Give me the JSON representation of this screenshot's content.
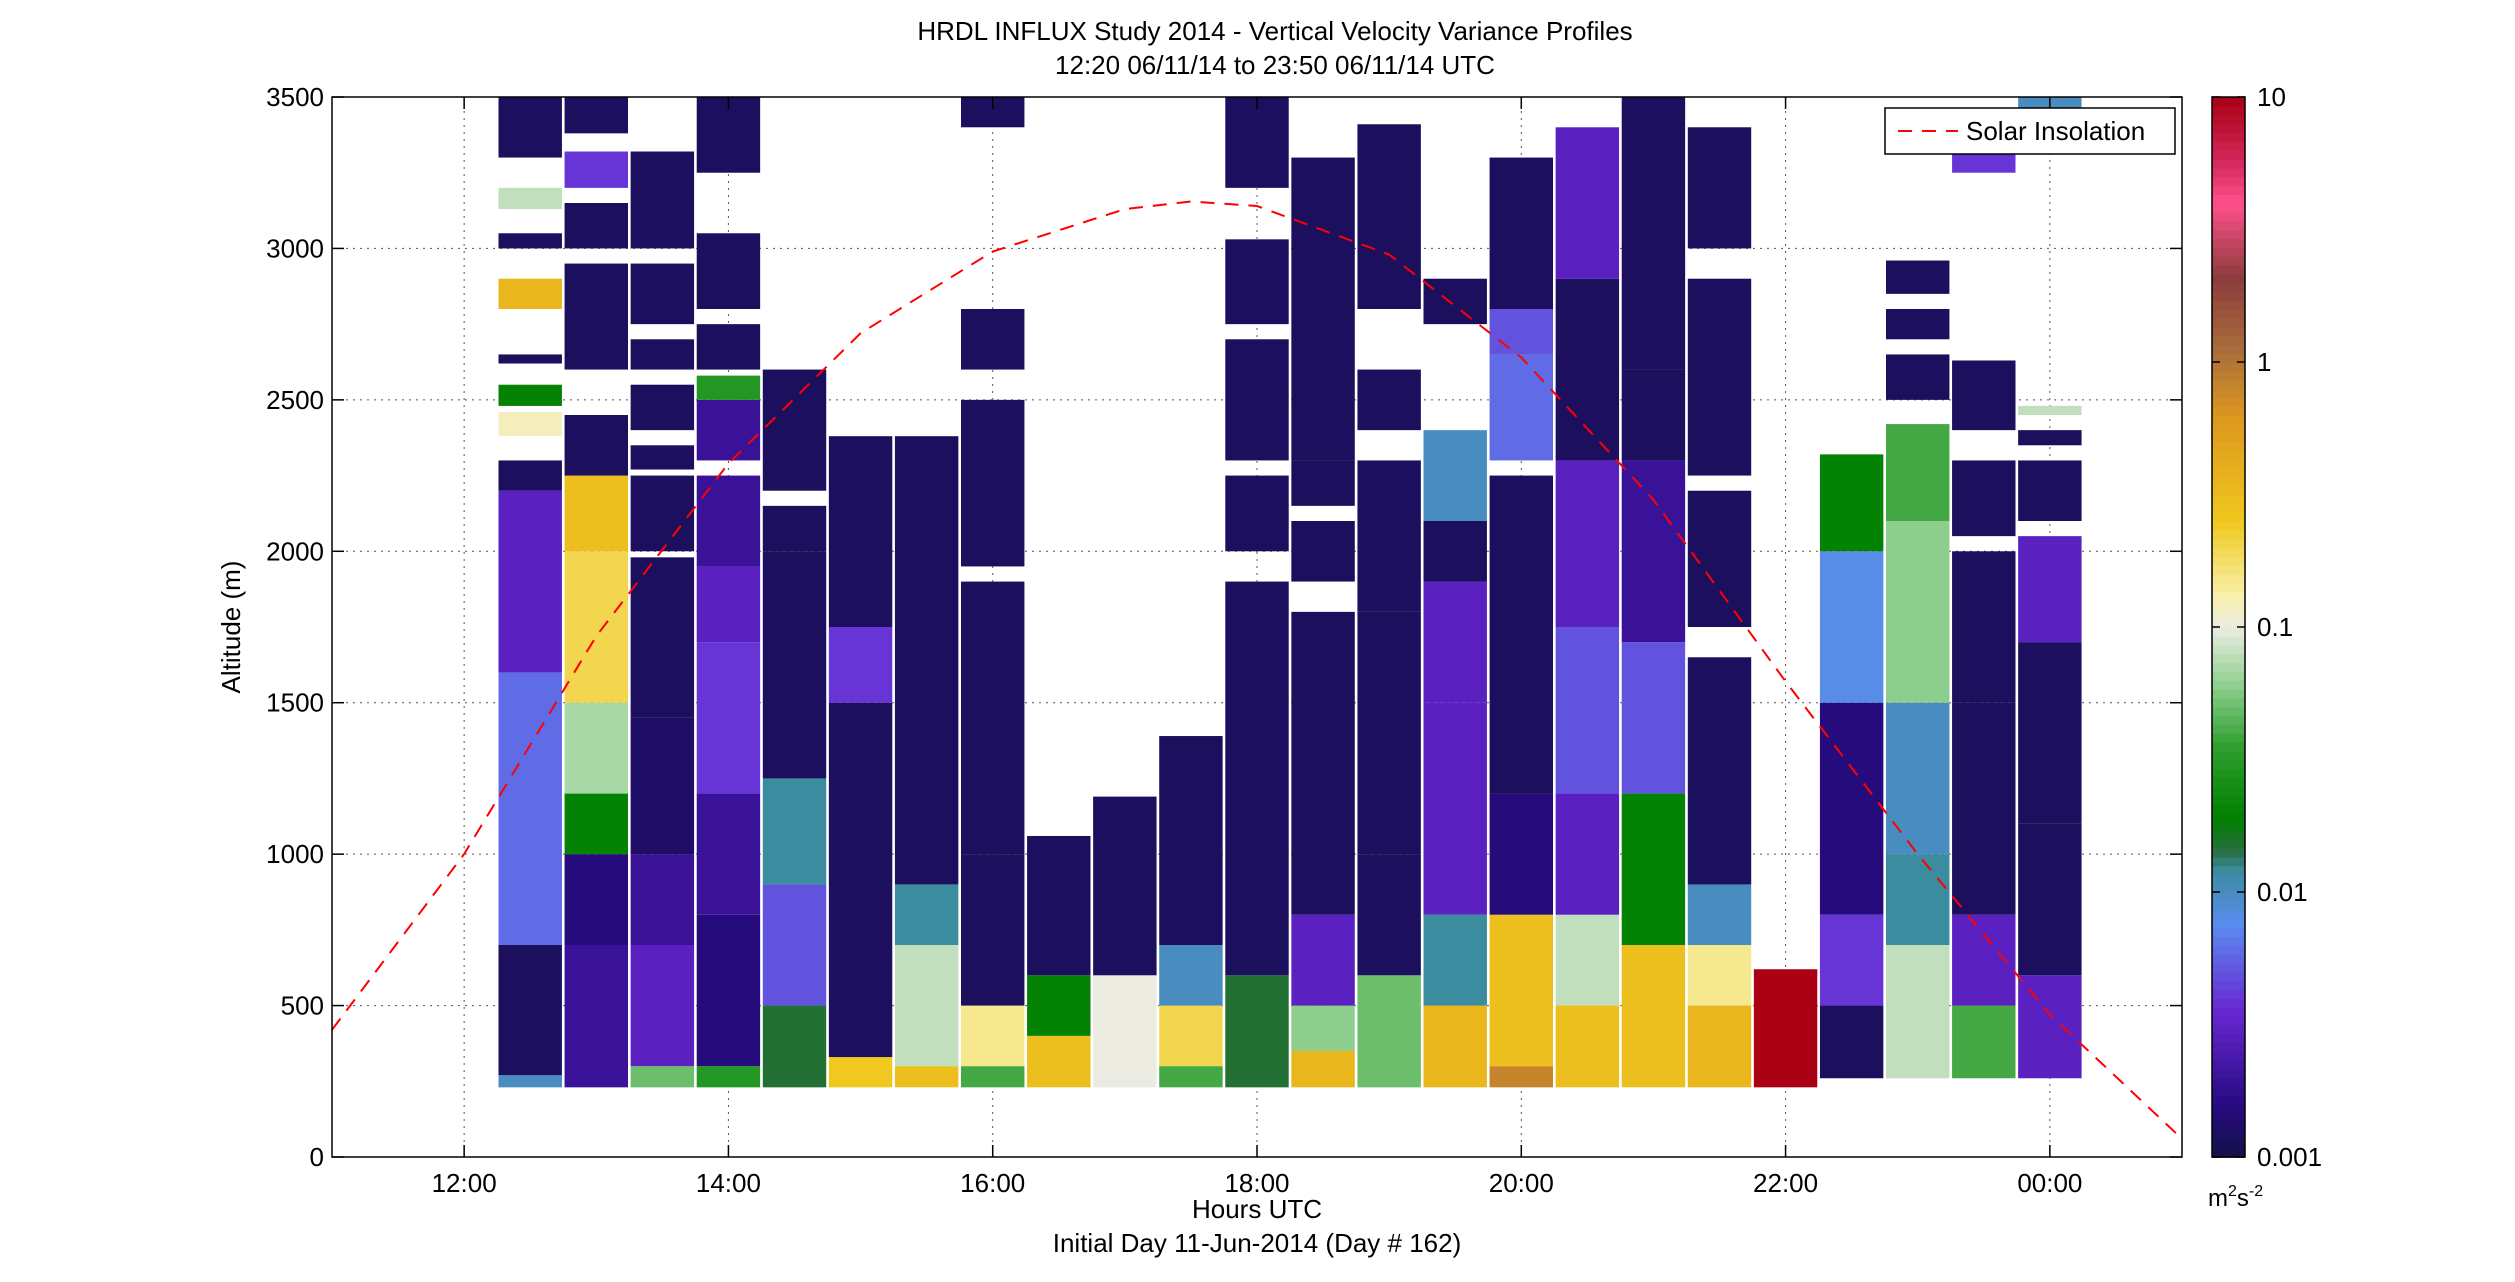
{
  "chart_data": {
    "type": "heatmap",
    "title": "HRDL INFLUX Study 2014 - Vertical Velocity Variance Profiles",
    "subtitle": "12:20 06/11/14 to 23:50 06/11/14  UTC",
    "xlabel": "Hours UTC",
    "xlabel2": "Initial Day 11-Jun-2014 (Day # 162)",
    "ylabel": "Altitude (m)",
    "xlim": [
      11.0,
      25.0
    ],
    "ylim": [
      0,
      3500
    ],
    "grid": true,
    "x_ticks": [
      {
        "value": 12,
        "label": "12:00"
      },
      {
        "value": 14,
        "label": "14:00"
      },
      {
        "value": 16,
        "label": "16:00"
      },
      {
        "value": 18,
        "label": "18:00"
      },
      {
        "value": 20,
        "label": "20:00"
      },
      {
        "value": 22,
        "label": "22:00"
      },
      {
        "value": 24,
        "label": "00:00"
      }
    ],
    "y_ticks": [
      {
        "value": 0,
        "label": "0"
      },
      {
        "value": 500,
        "label": "500"
      },
      {
        "value": 1000,
        "label": "1000"
      },
      {
        "value": 1500,
        "label": "1500"
      },
      {
        "value": 2000,
        "label": "2000"
      },
      {
        "value": 2500,
        "label": "2500"
      },
      {
        "value": 3000,
        "label": "3000"
      },
      {
        "value": 3500,
        "label": "3500"
      }
    ],
    "colorbar": {
      "scale": "log",
      "range": [
        0.001,
        10
      ],
      "tick_labels": [
        {
          "value": 10,
          "label": "10"
        },
        {
          "value": 1,
          "label": "1"
        },
        {
          "value": 0.1,
          "label": "0.1"
        },
        {
          "value": 0.01,
          "label": "0.01"
        },
        {
          "value": 0.001,
          "label": "0.001"
        }
      ],
      "units_base": "m",
      "units_exp1": "2",
      "units_mid": "s",
      "units_exp2": "-2"
    },
    "legend": {
      "label": "Solar Insolation",
      "position": "top-right",
      "color": "#ff0000",
      "style": "dashed"
    },
    "solar_insolation": {
      "x": [
        11.0,
        12.0,
        13.0,
        14.0,
        15.0,
        16.0,
        17.0,
        17.5,
        18.0,
        19.0,
        20.0,
        21.0,
        22.0,
        23.0,
        24.0,
        25.0
      ],
      "y": [
        420,
        1000,
        1720,
        2290,
        2720,
        2990,
        3130,
        3155,
        3140,
        2980,
        2640,
        2170,
        1570,
        1000,
        470,
        60
      ]
    },
    "profiles": [
      {
        "t": 12.5,
        "segments": [
          [
            230,
            270,
            0.01
          ],
          [
            270,
            700,
            0.0012
          ],
          [
            700,
            1600,
            0.006
          ],
          [
            1600,
            2200,
            0.003
          ],
          [
            2200,
            2300,
            0.0012
          ],
          [
            2380,
            2460,
            0.12
          ],
          [
            2480,
            2550,
            0.02
          ],
          [
            2620,
            2650,
            0.0012
          ],
          [
            2800,
            2900,
            0.35
          ],
          [
            3000,
            3050,
            0.0012
          ],
          [
            3130,
            3200,
            0.08
          ],
          [
            3300,
            3500,
            0.0012
          ]
        ]
      },
      {
        "t": 13.0,
        "segments": [
          [
            230,
            700,
            0.002
          ],
          [
            700,
            1000,
            0.0015
          ],
          [
            1000,
            1200,
            0.02
          ],
          [
            1200,
            1500,
            0.07
          ],
          [
            1500,
            2000,
            0.2
          ],
          [
            2000,
            2250,
            0.3
          ],
          [
            2250,
            2450,
            0.0012
          ],
          [
            2600,
            2950,
            0.0012
          ],
          [
            3000,
            3150,
            0.0012
          ],
          [
            3200,
            3320,
            0.004
          ],
          [
            3380,
            3500,
            0.0012
          ]
        ]
      },
      {
        "t": 13.5,
        "segments": [
          [
            230,
            300,
            0.05
          ],
          [
            300,
            700,
            0.003
          ],
          [
            700,
            1000,
            0.002
          ],
          [
            1000,
            1450,
            0.0013
          ],
          [
            1450,
            1980,
            0.0012
          ],
          [
            2000,
            2250,
            0.0012
          ],
          [
            2270,
            2350,
            0.0012
          ],
          [
            2400,
            2550,
            0.0012
          ],
          [
            2600,
            2700,
            0.0012
          ],
          [
            2750,
            2950,
            0.0012
          ],
          [
            3000,
            3320,
            0.0012
          ]
        ]
      },
      {
        "t": 14.0,
        "segments": [
          [
            230,
            300,
            0.03
          ],
          [
            300,
            800,
            0.0015
          ],
          [
            800,
            1200,
            0.002
          ],
          [
            1200,
            1700,
            0.004
          ],
          [
            1700,
            1950,
            0.003
          ],
          [
            1950,
            2250,
            0.002
          ],
          [
            2300,
            2500,
            0.002
          ],
          [
            2500,
            2580,
            0.03
          ],
          [
            2600,
            2750,
            0.0012
          ],
          [
            2800,
            3050,
            0.0012
          ],
          [
            3250,
            3500,
            0.0012
          ]
        ]
      },
      {
        "t": 14.5,
        "segments": [
          [
            230,
            500,
            0.015
          ],
          [
            500,
            900,
            0.005
          ],
          [
            900,
            1250,
            0.012
          ],
          [
            1250,
            2000,
            0.0012
          ],
          [
            2000,
            2150,
            0.0012
          ],
          [
            2200,
            2600,
            0.0012
          ]
        ]
      },
      {
        "t": 15.0,
        "segments": [
          [
            230,
            330,
            0.25
          ],
          [
            330,
            1500,
            0.0012
          ],
          [
            1500,
            1750,
            0.004
          ],
          [
            1750,
            2380,
            0.0012
          ]
        ]
      },
      {
        "t": 15.5,
        "segments": [
          [
            230,
            300,
            0.3
          ],
          [
            300,
            700,
            0.08
          ],
          [
            700,
            900,
            0.012
          ],
          [
            900,
            2380,
            0.0012
          ]
        ]
      },
      {
        "t": 16.0,
        "segments": [
          [
            230,
            300,
            0.04
          ],
          [
            300,
            500,
            0.15
          ],
          [
            500,
            1000,
            0.0012
          ],
          [
            1000,
            1900,
            0.0012
          ],
          [
            1950,
            2500,
            0.0012
          ],
          [
            2600,
            2800,
            0.0012
          ],
          [
            3400,
            3500,
            0.0012
          ]
        ]
      },
      {
        "t": 16.5,
        "segments": [
          [
            230,
            400,
            0.3
          ],
          [
            400,
            600,
            0.02
          ],
          [
            600,
            1060,
            0.0012
          ]
        ]
      },
      {
        "t": 17.0,
        "segments": [
          [
            230,
            600,
            0.1
          ],
          [
            600,
            1190,
            0.0012
          ]
        ]
      },
      {
        "t": 17.5,
        "segments": [
          [
            230,
            300,
            0.04
          ],
          [
            300,
            500,
            0.2
          ],
          [
            500,
            700,
            0.01
          ],
          [
            700,
            1390,
            0.0012
          ]
        ]
      },
      {
        "t": 18.0,
        "segments": [
          [
            230,
            600,
            0.015
          ],
          [
            600,
            1900,
            0.0012
          ],
          [
            2000,
            2250,
            0.0012
          ],
          [
            2300,
            2700,
            0.0012
          ],
          [
            2750,
            3030,
            0.0012
          ],
          [
            3200,
            3500,
            0.0012
          ]
        ]
      },
      {
        "t": 18.5,
        "segments": [
          [
            230,
            350,
            0.35
          ],
          [
            350,
            500,
            0.06
          ],
          [
            500,
            800,
            0.003
          ],
          [
            800,
            1800,
            0.0012
          ],
          [
            1900,
            2100,
            0.0012
          ],
          [
            2150,
            2300,
            0.0012
          ],
          [
            2300,
            3300,
            0.0012
          ]
        ]
      },
      {
        "t": 19.0,
        "segments": [
          [
            230,
            600,
            0.05
          ],
          [
            600,
            1000,
            0.0012
          ],
          [
            1000,
            1800,
            0.0012
          ],
          [
            1800,
            2100,
            0.0012
          ],
          [
            2100,
            2300,
            0.0012
          ],
          [
            2400,
            2600,
            0.0012
          ],
          [
            2800,
            3410,
            0.0012
          ]
        ]
      },
      {
        "t": 19.5,
        "segments": [
          [
            230,
            500,
            0.35
          ],
          [
            500,
            800,
            0.012
          ],
          [
            800,
            1500,
            0.003
          ],
          [
            1500,
            1900,
            0.003
          ],
          [
            1900,
            2100,
            0.0012
          ],
          [
            2100,
            2400,
            0.01
          ],
          [
            2750,
            2900,
            0.0012
          ]
        ]
      },
      {
        "t": 20.0,
        "segments": [
          [
            230,
            300,
            0.8
          ],
          [
            300,
            800,
            0.3
          ],
          [
            800,
            1200,
            0.0015
          ],
          [
            1200,
            2250,
            0.0012
          ],
          [
            2300,
            2650,
            0.006
          ],
          [
            2650,
            2800,
            0.005
          ],
          [
            2800,
            3300,
            0.0012
          ]
        ]
      },
      {
        "t": 20.5,
        "segments": [
          [
            230,
            500,
            0.3
          ],
          [
            500,
            800,
            0.08
          ],
          [
            800,
            1200,
            0.003
          ],
          [
            1200,
            1750,
            0.005
          ],
          [
            1750,
            2300,
            0.003
          ],
          [
            2300,
            2900,
            0.0012
          ],
          [
            2900,
            3400,
            0.003
          ]
        ]
      },
      {
        "t": 21.0,
        "segments": [
          [
            230,
            700,
            0.3
          ],
          [
            700,
            1200,
            0.02
          ],
          [
            1200,
            1700,
            0.005
          ],
          [
            1700,
            2300,
            0.002
          ],
          [
            2300,
            2600,
            0.0012
          ],
          [
            2600,
            3500,
            0.0012
          ]
        ]
      },
      {
        "t": 21.5,
        "segments": [
          [
            230,
            500,
            0.35
          ],
          [
            500,
            700,
            0.15
          ],
          [
            700,
            900,
            0.01
          ],
          [
            900,
            1650,
            0.0012
          ],
          [
            1750,
            2200,
            0.0012
          ],
          [
            2250,
            2900,
            0.0012
          ],
          [
            3000,
            3400,
            0.0012
          ]
        ]
      },
      {
        "t": 22.0,
        "segments": [
          [
            230,
            620,
            10
          ]
        ]
      },
      {
        "t": 22.5,
        "segments": [
          [
            260,
            500,
            0.0012
          ],
          [
            500,
            800,
            0.004
          ],
          [
            800,
            1500,
            0.0015
          ],
          [
            1500,
            2000,
            0.008
          ],
          [
            2000,
            2320,
            0.02
          ]
        ]
      },
      {
        "t": 23.0,
        "segments": [
          [
            260,
            700,
            0.08
          ],
          [
            700,
            1000,
            0.012
          ],
          [
            1000,
            1500,
            0.01
          ],
          [
            1500,
            2100,
            0.06
          ],
          [
            2100,
            2420,
            0.04
          ],
          [
            2500,
            2650,
            0.0012
          ],
          [
            2700,
            2800,
            0.0012
          ],
          [
            2850,
            2960,
            0.0012
          ]
        ]
      },
      {
        "t": 23.5,
        "segments": [
          [
            260,
            500,
            0.04
          ],
          [
            500,
            800,
            0.003
          ],
          [
            800,
            1500,
            0.0012
          ],
          [
            1500,
            2000,
            0.0012
          ],
          [
            2050,
            2300,
            0.0012
          ],
          [
            2400,
            2630,
            0.0012
          ],
          [
            3250,
            3350,
            0.004
          ]
        ]
      },
      {
        "t": 24.0,
        "segments": [
          [
            260,
            600,
            0.003
          ],
          [
            600,
            1100,
            0.0012
          ],
          [
            1100,
            1700,
            0.0012
          ],
          [
            1700,
            2050,
            0.003
          ],
          [
            2100,
            2300,
            0.0012
          ],
          [
            2350,
            2400,
            0.0012
          ],
          [
            2450,
            2480,
            0.08
          ],
          [
            3450,
            3500,
            0.01
          ]
        ]
      }
    ]
  }
}
